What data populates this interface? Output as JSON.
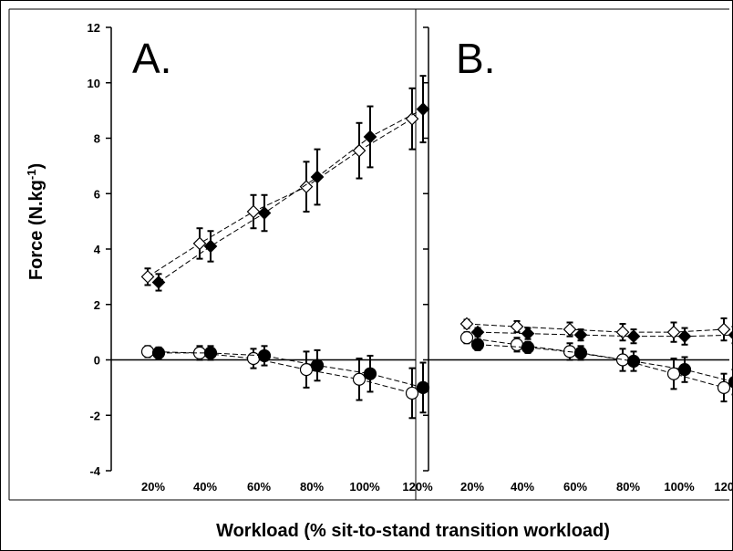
{
  "chart_data": {
    "type": "line",
    "ylabel": "Force (N.kg-1)",
    "ylabel_parts": {
      "base": "Force (N.kg",
      "superscript": "-1",
      "close": ")"
    },
    "xlabel": "Workload (% sit-to-stand transition workload)",
    "ylim": [
      -4,
      12
    ],
    "yticks": [
      -4,
      -2,
      0,
      2,
      4,
      6,
      8,
      10,
      12
    ],
    "categories": [
      "20%",
      "40%",
      "60%",
      "80%",
      "100%",
      "120%"
    ],
    "grid": false,
    "legend": "none",
    "panels": [
      {
        "label": "A.",
        "series": [
          {
            "marker": "diamond",
            "fill": "open",
            "offset": "left",
            "values": [
              3.0,
              4.2,
              5.35,
              6.25,
              7.55,
              8.7
            ],
            "errors": [
              0.3,
              0.55,
              0.6,
              0.9,
              1.0,
              1.1
            ]
          },
          {
            "marker": "diamond",
            "fill": "filled",
            "offset": "right",
            "values": [
              2.8,
              4.1,
              5.3,
              6.6,
              8.05,
              9.05
            ],
            "errors": [
              0.3,
              0.55,
              0.65,
              1.0,
              1.1,
              1.2
            ]
          },
          {
            "marker": "circle",
            "fill": "open",
            "offset": "left",
            "values": [
              0.3,
              0.25,
              0.05,
              -0.35,
              -0.7,
              -1.2
            ],
            "errors": [
              0.2,
              0.25,
              0.35,
              0.65,
              0.75,
              0.9
            ]
          },
          {
            "marker": "circle",
            "fill": "filled",
            "offset": "right",
            "values": [
              0.25,
              0.25,
              0.15,
              -0.2,
              -0.5,
              -1.0
            ],
            "errors": [
              0.2,
              0.25,
              0.35,
              0.55,
              0.65,
              0.9
            ]
          }
        ]
      },
      {
        "label": "B.",
        "series": [
          {
            "marker": "diamond",
            "fill": "open",
            "offset": "left",
            "values": [
              1.3,
              1.2,
              1.1,
              1.0,
              1.0,
              1.1
            ],
            "errors": [
              0.15,
              0.2,
              0.25,
              0.3,
              0.35,
              0.4
            ]
          },
          {
            "marker": "diamond",
            "fill": "filled",
            "offset": "right",
            "values": [
              1.0,
              0.95,
              0.9,
              0.85,
              0.85,
              0.9
            ],
            "errors": [
              0.15,
              0.2,
              0.2,
              0.25,
              0.3,
              0.3
            ]
          },
          {
            "marker": "circle",
            "fill": "open",
            "offset": "left",
            "values": [
              0.8,
              0.55,
              0.3,
              0.0,
              -0.5,
              -1.0
            ],
            "errors": [
              0.2,
              0.25,
              0.3,
              0.4,
              0.55,
              0.5
            ]
          },
          {
            "marker": "circle",
            "fill": "filled",
            "offset": "right",
            "values": [
              0.55,
              0.45,
              0.25,
              -0.05,
              -0.35,
              -0.8
            ],
            "errors": [
              0.2,
              0.2,
              0.25,
              0.35,
              0.45,
              0.45
            ]
          }
        ]
      }
    ]
  }
}
